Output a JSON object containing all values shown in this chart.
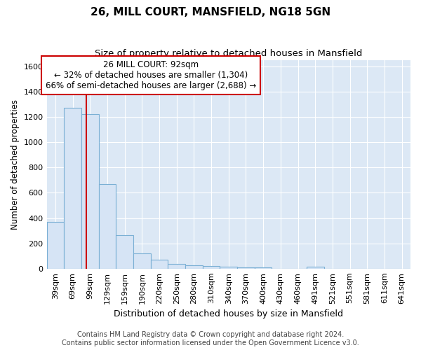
{
  "title": "26, MILL COURT, MANSFIELD, NG18 5GN",
  "subtitle": "Size of property relative to detached houses in Mansfield",
  "xlabel": "Distribution of detached houses by size in Mansfield",
  "ylabel": "Number of detached properties",
  "categories": [
    "39sqm",
    "69sqm",
    "99sqm",
    "129sqm",
    "159sqm",
    "190sqm",
    "220sqm",
    "250sqm",
    "280sqm",
    "310sqm",
    "340sqm",
    "370sqm",
    "400sqm",
    "430sqm",
    "460sqm",
    "491sqm",
    "521sqm",
    "551sqm",
    "581sqm",
    "611sqm",
    "641sqm"
  ],
  "values": [
    370,
    1270,
    1220,
    670,
    265,
    120,
    70,
    40,
    28,
    20,
    15,
    12,
    10,
    0,
    0,
    18,
    0,
    0,
    0,
    0,
    0
  ],
  "bar_color": "#d6e4f5",
  "bar_edge_color": "#7aafd4",
  "red_line_x": 1.77,
  "annotation_line1": "26 MILL COURT: 92sqm",
  "annotation_line2": "← 32% of detached houses are smaller (1,304)",
  "annotation_line3": "66% of semi-detached houses are larger (2,688) →",
  "annotation_box_color": "#ffffff",
  "annotation_box_edge": "#cc0000",
  "ylim": [
    0,
    1650
  ],
  "yticks": [
    0,
    200,
    400,
    600,
    800,
    1000,
    1200,
    1400,
    1600
  ],
  "grid_color": "#ffffff",
  "bg_color": "#dce8f5",
  "footer": "Contains HM Land Registry data © Crown copyright and database right 2024.\nContains public sector information licensed under the Open Government Licence v3.0.",
  "title_fontsize": 11,
  "subtitle_fontsize": 9.5,
  "xlabel_fontsize": 9,
  "ylabel_fontsize": 8.5,
  "tick_fontsize": 8,
  "annotation_fontsize": 8.5,
  "footer_fontsize": 7
}
